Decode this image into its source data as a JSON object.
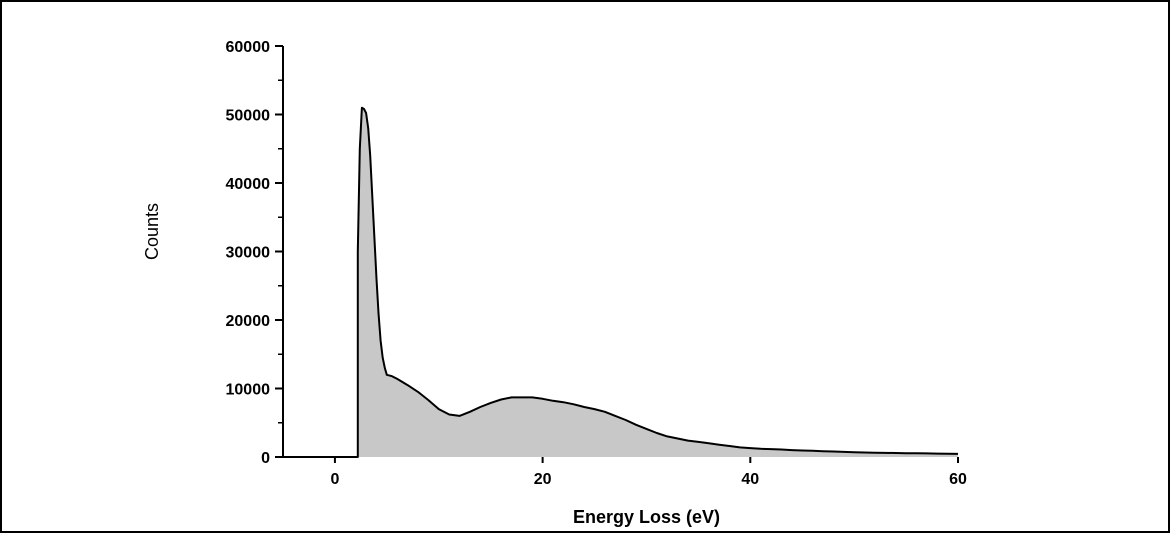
{
  "chart_data": {
    "type": "area",
    "title": "",
    "xlabel": "Energy Loss (eV)",
    "ylabel": "Counts",
    "xlim": [
      -5,
      60
    ],
    "ylim": [
      0,
      60000
    ],
    "x_ticks": [
      0,
      20,
      40,
      60
    ],
    "y_ticks": [
      0,
      10000,
      20000,
      30000,
      40000,
      50000,
      60000
    ],
    "x_tick_labels": [
      "0",
      "20",
      "40",
      "60"
    ],
    "y_tick_labels": [
      "0",
      "10000",
      "20000",
      "30000",
      "40000",
      "50000",
      "60000"
    ],
    "grid": false,
    "legend": "none",
    "fill_color": "#c8c8c8",
    "line_color": "#000000",
    "series": [
      {
        "x": [
          -5,
          2.2,
          2.2,
          2.4,
          2.6,
          2.8,
          3.0,
          3.2,
          3.4,
          3.6,
          3.8,
          4.0,
          4.2,
          4.4,
          4.6,
          4.8,
          5.0,
          5.5,
          6,
          7,
          8,
          9,
          10,
          11,
          12,
          13,
          14,
          15,
          16,
          17,
          18,
          19,
          20,
          21,
          22,
          23,
          24,
          25,
          26,
          27,
          28,
          29,
          30,
          31,
          32,
          33,
          34,
          35,
          36,
          37,
          38,
          39,
          40,
          41,
          42,
          43,
          44,
          45,
          46,
          47,
          48,
          49,
          50,
          51,
          52,
          53,
          54,
          55,
          56,
          57,
          58,
          59,
          60
        ],
        "values": [
          0,
          0,
          30000,
          45000,
          51000,
          50800,
          50200,
          48000,
          44000,
          38000,
          32000,
          26000,
          21000,
          17000,
          14500,
          13000,
          12000,
          11800,
          11400,
          10500,
          9500,
          8300,
          7000,
          6200,
          6000,
          6600,
          7300,
          7900,
          8400,
          8700,
          8700,
          8700,
          8500,
          8200,
          8000,
          7700,
          7300,
          7000,
          6600,
          6000,
          5400,
          4700,
          4100,
          3500,
          3000,
          2700,
          2400,
          2200,
          2000,
          1800,
          1600,
          1400,
          1300,
          1200,
          1150,
          1100,
          1000,
          950,
          900,
          850,
          800,
          750,
          700,
          650,
          620,
          600,
          580,
          560,
          540,
          520,
          500,
          480,
          450
        ]
      }
    ]
  }
}
